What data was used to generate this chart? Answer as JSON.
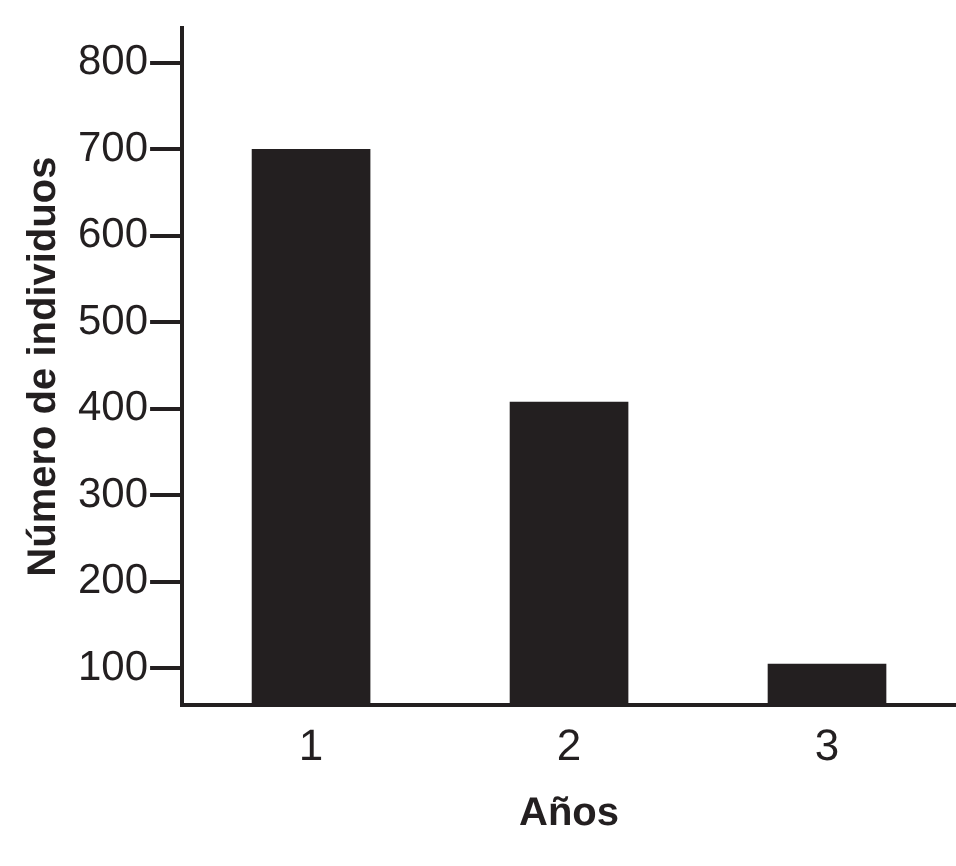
{
  "chart_data": {
    "type": "bar",
    "xlabel": "Años",
    "ylabel": "Número de individuos",
    "categories": [
      "1",
      "2",
      "3"
    ],
    "values": [
      700,
      408,
      105
    ],
    "color": "#231f20",
    "ylim": [
      57,
      840
    ],
    "yticks": [
      100,
      200,
      300,
      400,
      500,
      600,
      700,
      800
    ],
    "grid": false,
    "legend": false
  }
}
